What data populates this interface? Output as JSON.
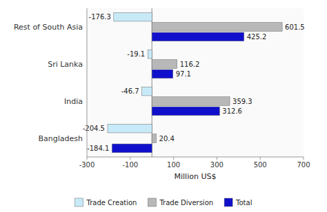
{
  "chart_data": {
    "type": "bar",
    "orientation": "horizontal",
    "categories": [
      "Bangladesh",
      "India",
      "Sri Lanka",
      "Rest of South Asia"
    ],
    "series": [
      {
        "name": "Trade Creation",
        "color": "#c8eaf8",
        "values": [
          -204.5,
          -46.7,
          -19.1,
          -176.3
        ]
      },
      {
        "name": "Trade Diversion",
        "color": "#b8b8b8",
        "values": [
          20.4,
          359.3,
          116.2,
          601.5
        ]
      },
      {
        "name": "Total",
        "color": "#1010cc",
        "values": [
          -184.1,
          312.6,
          97.1,
          425.2
        ]
      }
    ],
    "x_label": "Million US$",
    "xlim": [
      -300,
      700
    ],
    "xticks": [
      -300,
      -100,
      100,
      300,
      500,
      700
    ],
    "grid": false,
    "legend": "bottom",
    "data_labels": true
  }
}
